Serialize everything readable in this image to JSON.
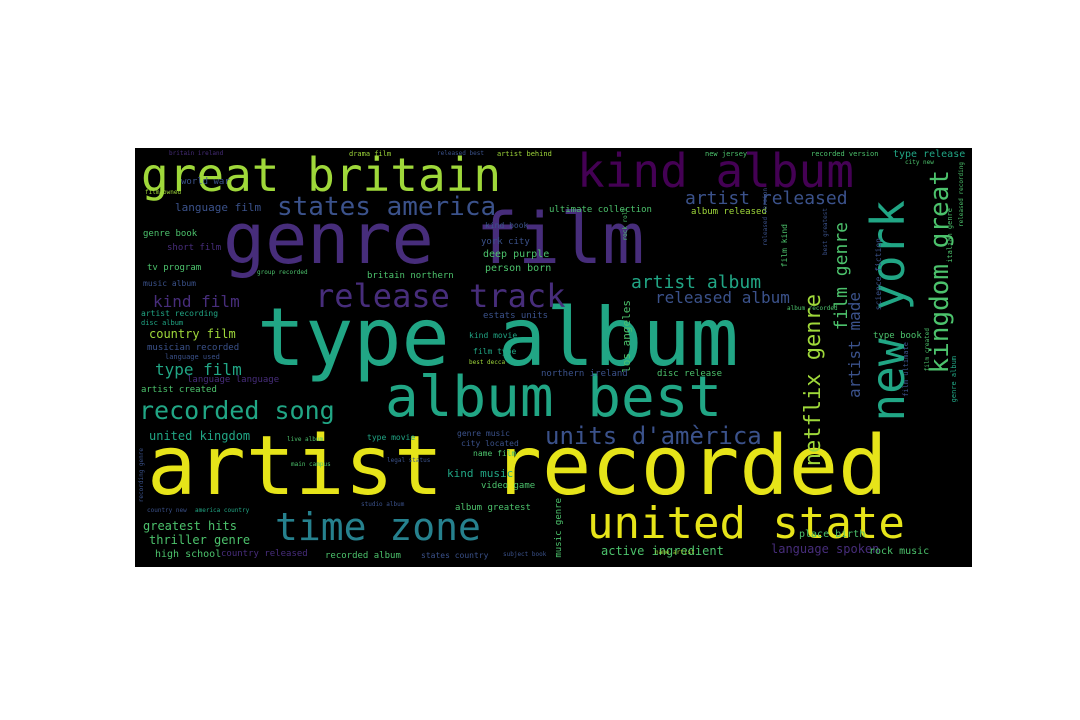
{
  "palette": {
    "background": "#000000",
    "yellow": "#e6e419",
    "lime": "#9fd83a",
    "green": "#4cc26c",
    "teal": "#21a685",
    "cyan": "#26818e",
    "blue": "#3b528b",
    "purple": "#472d7b",
    "darkpurple": "#440154"
  },
  "words": [
    {
      "text": "artist recorded",
      "color": "yellow"
    },
    {
      "text": "type album",
      "color": "teal"
    },
    {
      "text": "genre film",
      "color": "purple"
    },
    {
      "text": "album best",
      "color": "teal"
    },
    {
      "text": "united state",
      "color": "yellow"
    },
    {
      "text": "great britain",
      "color": "lime"
    },
    {
      "text": "kind album",
      "color": "darkpurple"
    },
    {
      "text": "time zone",
      "color": "cyan"
    },
    {
      "text": "new york",
      "color": "teal"
    },
    {
      "text": "release track",
      "color": "purple"
    },
    {
      "text": "states america",
      "color": "blue"
    },
    {
      "text": "recorded song",
      "color": "teal"
    },
    {
      "text": "units d'amèrica",
      "color": "blue"
    },
    {
      "text": "kingdom great",
      "color": "green"
    },
    {
      "text": "netflix genre",
      "color": "lime"
    },
    {
      "text": "artist released",
      "color": "blue"
    },
    {
      "text": "artist album",
      "color": "teal"
    },
    {
      "text": "released album",
      "color": "blue"
    },
    {
      "text": "film genre",
      "color": "green"
    },
    {
      "text": "artist made",
      "color": "blue"
    },
    {
      "text": "kind film",
      "color": "purple"
    },
    {
      "text": "type film",
      "color": "teal"
    },
    {
      "text": "united kingdom",
      "color": "teal"
    },
    {
      "text": "country film",
      "color": "lime"
    },
    {
      "text": "greatest hits",
      "color": "green"
    },
    {
      "text": "thriller genre",
      "color": "green"
    },
    {
      "text": "language film",
      "color": "blue"
    },
    {
      "text": "type release",
      "color": "teal"
    },
    {
      "text": "active ingredient",
      "color": "green"
    },
    {
      "text": "language spoken",
      "color": "purple"
    },
    {
      "text": "place birth",
      "color": "green"
    },
    {
      "text": "rock music",
      "color": "green"
    },
    {
      "text": "high school",
      "color": "green"
    },
    {
      "text": "country released",
      "color": "purple"
    },
    {
      "text": "recorded album",
      "color": "green"
    },
    {
      "text": "states country",
      "color": "blue"
    },
    {
      "text": "album released",
      "color": "lime"
    },
    {
      "text": "ultimate collection",
      "color": "green"
    },
    {
      "text": "deep purple",
      "color": "green"
    },
    {
      "text": "person born",
      "color": "green"
    },
    {
      "text": "york city",
      "color": "blue"
    },
    {
      "text": "britain northern",
      "color": "green"
    },
    {
      "text": "kind book",
      "color": "blue"
    },
    {
      "text": "kind movie",
      "color": "teal"
    },
    {
      "text": "film type",
      "color": "teal"
    },
    {
      "text": "los angeles",
      "color": "green"
    },
    {
      "text": "northern ireland",
      "color": "blue"
    },
    {
      "text": "disc release",
      "color": "green"
    },
    {
      "text": "kind music",
      "color": "teal"
    },
    {
      "text": "video game",
      "color": "green"
    },
    {
      "text": "album greatest",
      "color": "green"
    },
    {
      "text": "music genre",
      "color": "green"
    },
    {
      "text": "genre music",
      "color": "blue"
    },
    {
      "text": "city located",
      "color": "blue"
    },
    {
      "text": "name film",
      "color": "green"
    },
    {
      "text": "type movie",
      "color": "teal"
    },
    {
      "text": "tv program",
      "color": "green"
    },
    {
      "text": "music album",
      "color": "blue"
    },
    {
      "text": "artist recording",
      "color": "teal"
    },
    {
      "text": "disc album",
      "color": "teal"
    },
    {
      "text": "musician recorded",
      "color": "blue"
    },
    {
      "text": "language used",
      "color": "blue"
    },
    {
      "text": "artist created",
      "color": "green"
    },
    {
      "text": "language language",
      "color": "purple"
    },
    {
      "text": "genre book",
      "color": "green"
    },
    {
      "text": "short film",
      "color": "purple"
    },
    {
      "text": "world war",
      "color": "blue"
    },
    {
      "text": "film owned",
      "color": "lime"
    },
    {
      "text": "estats units",
      "color": "blue"
    },
    {
      "text": "type book",
      "color": "green"
    },
    {
      "text": "film kind",
      "color": "green"
    },
    {
      "text": "science fiction",
      "color": "blue"
    },
    {
      "text": "recorded version",
      "color": "green"
    },
    {
      "text": "new jersey",
      "color": "green"
    },
    {
      "text": "city new",
      "color": "green"
    },
    {
      "text": "drama film",
      "color": "lime"
    },
    {
      "text": "released best",
      "color": "blue"
    },
    {
      "text": "artist behind",
      "color": "lime"
    },
    {
      "text": "britain ireland",
      "color": "purple"
    },
    {
      "text": "best decca",
      "color": "lime"
    },
    {
      "text": "subject book",
      "color": "blue"
    },
    {
      "text": "name artist",
      "color": "lime"
    },
    {
      "text": "album recorded",
      "color": "green"
    },
    {
      "text": "released version",
      "color": "blue"
    },
    {
      "text": "italian genre",
      "color": "green"
    },
    {
      "text": "live album",
      "color": "green"
    },
    {
      "text": "main campus",
      "color": "green"
    },
    {
      "text": "studio album",
      "color": "blue"
    },
    {
      "text": "legal status",
      "color": "blue"
    },
    {
      "text": "group recorded",
      "color": "green"
    },
    {
      "text": "rock roll",
      "color": "green"
    },
    {
      "text": "america country",
      "color": "teal"
    },
    {
      "text": "country new",
      "color": "blue"
    },
    {
      "text": "genre album",
      "color": "teal"
    },
    {
      "text": "film created",
      "color": "green"
    },
    {
      "text": "best greatest",
      "color": "blue"
    },
    {
      "text": "released recording",
      "color": "green"
    },
    {
      "text": "recording genre",
      "color": "blue"
    },
    {
      "text": "film ultimate",
      "color": "blue"
    }
  ]
}
